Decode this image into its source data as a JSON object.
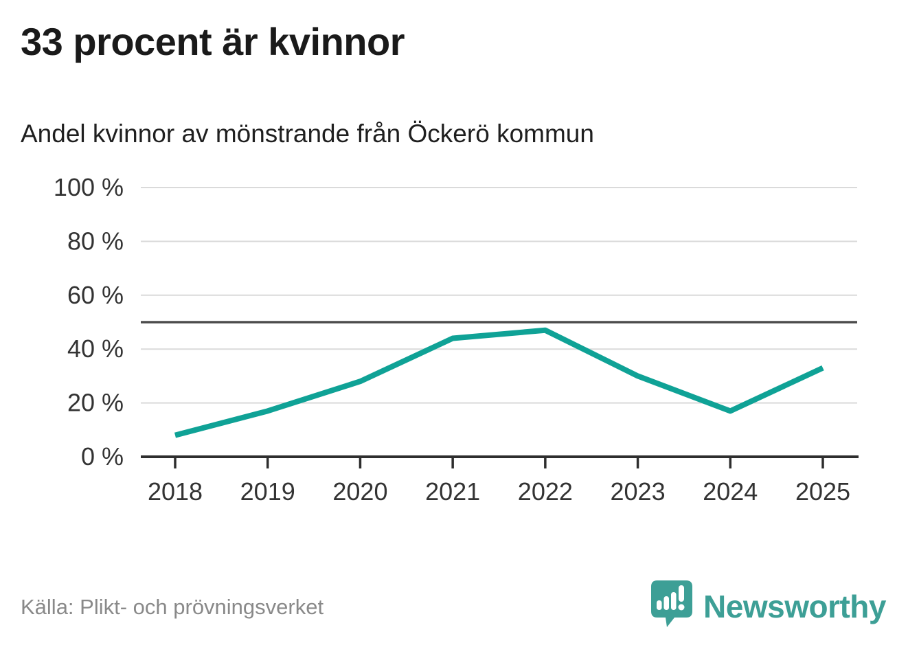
{
  "header": {
    "title": "33 procent är kvinnor",
    "subtitle": "Andel kvinnor av mönstrande från Öckerö kommun"
  },
  "footer": {
    "source": "Källa: Plikt- och prövningsverket",
    "logo_text": "Newsworthy"
  },
  "colors": {
    "line": "#0fa296",
    "grid": "#dadada",
    "refline": "#4d4d4d",
    "axis": "#2e2e2e",
    "tick_label": "#333333",
    "title": "#1a1a1a",
    "source": "#898989",
    "logo": "#3d9f96"
  },
  "chart_data": {
    "type": "line",
    "title": "33 procent är kvinnor",
    "subtitle": "Andel kvinnor av mönstrande från Öckerö kommun",
    "series_name": "Andel kvinnor av mönstrande",
    "x": [
      "2018",
      "2019",
      "2020",
      "2021",
      "2022",
      "2023",
      "2024",
      "2025"
    ],
    "values": [
      8,
      17,
      28,
      44,
      47,
      30,
      17,
      33
    ],
    "unit": "%",
    "ylim": [
      0,
      100
    ],
    "yticks": [
      0,
      20,
      40,
      60,
      80,
      100
    ],
    "ytick_suffix": " %",
    "reference_line": 50,
    "grid": true,
    "legend": false,
    "source": "Källa: Plikt- och prövningsverket"
  }
}
